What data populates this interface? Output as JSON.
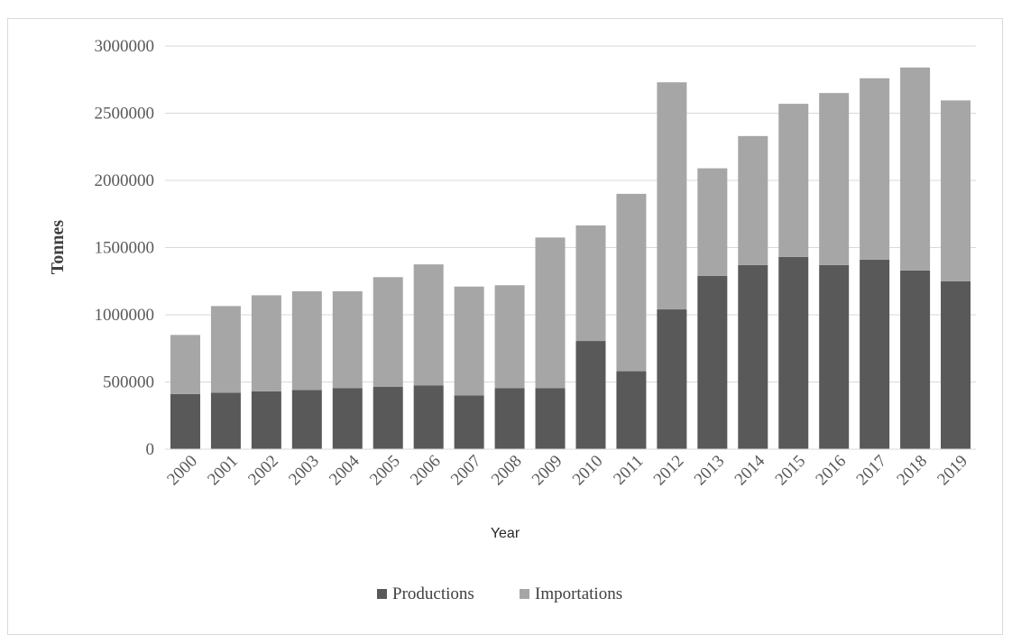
{
  "chart_data": {
    "type": "bar",
    "stacked": true,
    "title": "",
    "xlabel": "Year",
    "ylabel": "Tonnes",
    "ylim": [
      0,
      3000000
    ],
    "yticks": [
      "0",
      "500000",
      "1000000",
      "1500000",
      "2000000",
      "2500000",
      "3000000"
    ],
    "grid": true,
    "legend_position": "bottom",
    "categories": [
      "2000",
      "2001",
      "2002",
      "2003",
      "2004",
      "2005",
      "2006",
      "2007",
      "2008",
      "2009",
      "2010",
      "2011",
      "2012",
      "2013",
      "2014",
      "2015",
      "2016",
      "2017",
      "2018",
      "2019"
    ],
    "series": [
      {
        "name": "Productions",
        "color": "#595959",
        "values": [
          410000,
          420000,
          430000,
          440000,
          455000,
          465000,
          475000,
          400000,
          455000,
          455000,
          805000,
          580000,
          1040000,
          1290000,
          1370000,
          1430000,
          1370000,
          1410000,
          1330000,
          1250000
        ]
      },
      {
        "name": "Importations",
        "color": "#a6a6a6",
        "values": [
          440000,
          645000,
          715000,
          735000,
          720000,
          815000,
          900000,
          810000,
          765000,
          1120000,
          860000,
          1320000,
          1690000,
          800000,
          960000,
          1140000,
          1280000,
          1350000,
          1510000,
          1345000
        ]
      }
    ]
  }
}
